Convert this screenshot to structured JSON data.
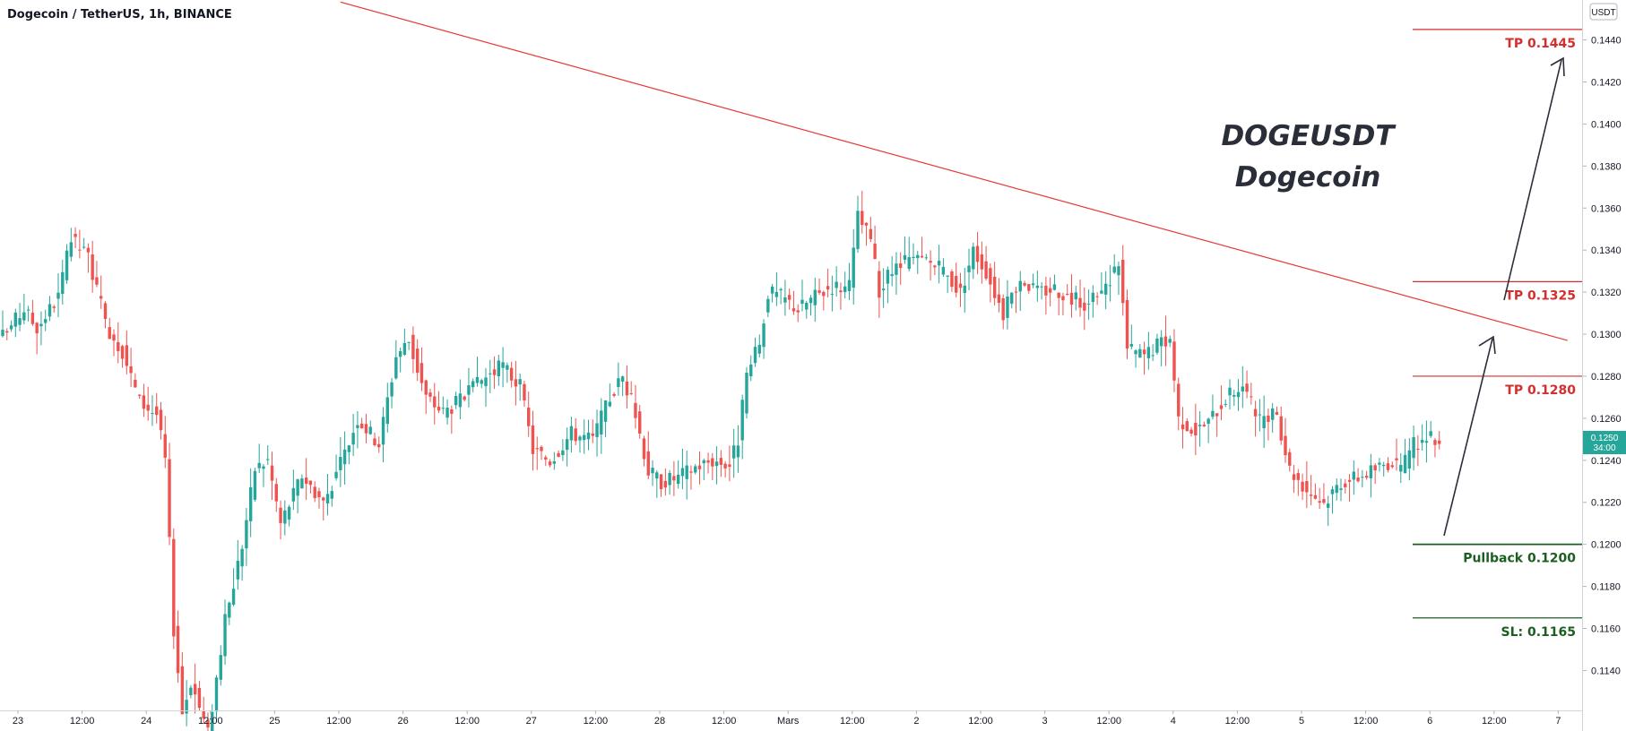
{
  "header": {
    "title": "Dogecoin / TetherUS, 1h, BINANCE"
  },
  "price_axis": {
    "unit": "USDT",
    "current_price": "0.1250",
    "countdown": "34:00"
  },
  "overlay": {
    "title_line1": "DOGEUSDT",
    "title_line2": "Dogecoin"
  },
  "levels": [
    {
      "label": "TP 0.1445",
      "price": 0.1445,
      "color": "#d32f2f"
    },
    {
      "label": "TP 0.1325",
      "price": 0.1325,
      "color": "#d32f2f"
    },
    {
      "label": "TP 0.1280",
      "price": 0.128,
      "color": "#d32f2f"
    },
    {
      "label": "Pullback 0.1200",
      "price": 0.12,
      "color": "#1b5e20"
    },
    {
      "label": "SL: 0.1165",
      "price": 0.1165,
      "color": "#1b5e20"
    }
  ],
  "colors": {
    "up": "#26a69a",
    "down": "#ef5350",
    "trendline": "#e53935",
    "arrow": "#2a2e39",
    "price_tag": "#26a69a"
  },
  "chart_data": {
    "type": "candlestick",
    "title": "Dogecoin / TetherUS, 1h, BINANCE",
    "ylim": [
      0.1121,
      0.1459
    ],
    "y_ticks": [
      "0.1440",
      "0.1420",
      "0.1400",
      "0.1380",
      "0.1360",
      "0.1340",
      "0.1320",
      "0.1300",
      "0.1280",
      "0.1260",
      "0.1240",
      "0.1220",
      "0.1200",
      "0.1180",
      "0.1160",
      "0.1140"
    ],
    "x_ticks": [
      "23",
      "12:00",
      "24",
      "12:00",
      "25",
      "12:00",
      "26",
      "12:00",
      "27",
      "12:00",
      "28",
      "12:00",
      "Mars",
      "12:00",
      "2",
      "12:00",
      "3",
      "12:00",
      "4",
      "12:00",
      "5",
      "12:00",
      "6",
      "12:00",
      "7"
    ],
    "trendline": {
      "from": {
        "bar": 79,
        "price": 0.1458
      },
      "to": {
        "bar": 366,
        "price": 0.1297
      }
    },
    "anchors": [
      [
        0,
        0.1299
      ],
      [
        5,
        0.1312
      ],
      [
        8,
        0.1303
      ],
      [
        13,
        0.1318
      ],
      [
        16,
        0.1345
      ],
      [
        20,
        0.1337
      ],
      [
        24,
        0.1305
      ],
      [
        28,
        0.1292
      ],
      [
        32,
        0.1268
      ],
      [
        36,
        0.1262
      ],
      [
        38,
        0.124
      ],
      [
        40,
        0.116
      ],
      [
        42,
        0.112
      ],
      [
        44,
        0.1135
      ],
      [
        48,
        0.111
      ],
      [
        52,
        0.1163
      ],
      [
        56,
        0.12
      ],
      [
        59,
        0.1236
      ],
      [
        62,
        0.124
      ],
      [
        65,
        0.121
      ],
      [
        70,
        0.1233
      ],
      [
        75,
        0.122
      ],
      [
        79,
        0.1238
      ],
      [
        83,
        0.126
      ],
      [
        88,
        0.1248
      ],
      [
        92,
        0.129
      ],
      [
        95,
        0.1297
      ],
      [
        99,
        0.127
      ],
      [
        103,
        0.1263
      ],
      [
        108,
        0.127
      ],
      [
        113,
        0.128
      ],
      [
        117,
        0.1285
      ],
      [
        121,
        0.1275
      ],
      [
        124,
        0.1245
      ],
      [
        128,
        0.124
      ],
      [
        133,
        0.1253
      ],
      [
        138,
        0.125
      ],
      [
        142,
        0.127
      ],
      [
        145,
        0.128
      ],
      [
        148,
        0.1262
      ],
      [
        151,
        0.1235
      ],
      [
        154,
        0.123
      ],
      [
        158,
        0.1232
      ],
      [
        162,
        0.1237
      ],
      [
        166,
        0.124
      ],
      [
        170,
        0.1238
      ],
      [
        172,
        0.125
      ],
      [
        174,
        0.128
      ],
      [
        177,
        0.1295
      ],
      [
        179,
        0.132
      ],
      [
        182,
        0.1318
      ],
      [
        186,
        0.1312
      ],
      [
        190,
        0.1318
      ],
      [
        194,
        0.1323
      ],
      [
        198,
        0.1322
      ],
      [
        200,
        0.1356
      ],
      [
        203,
        0.1345
      ],
      [
        205,
        0.132
      ],
      [
        208,
        0.133
      ],
      [
        212,
        0.1335
      ],
      [
        216,
        0.1335
      ],
      [
        220,
        0.133
      ],
      [
        224,
        0.132
      ],
      [
        227,
        0.134
      ],
      [
        230,
        0.133
      ],
      [
        234,
        0.131
      ],
      [
        238,
        0.1327
      ],
      [
        242,
        0.132
      ],
      [
        246,
        0.1322
      ],
      [
        250,
        0.1317
      ],
      [
        254,
        0.1314
      ],
      [
        258,
        0.1322
      ],
      [
        261,
        0.1335
      ],
      [
        263,
        0.1293
      ],
      [
        267,
        0.129
      ],
      [
        270,
        0.1295
      ],
      [
        273,
        0.1298
      ],
      [
        275,
        0.126
      ],
      [
        279,
        0.1254
      ],
      [
        282,
        0.1258
      ],
      [
        286,
        0.127
      ],
      [
        290,
        0.1276
      ],
      [
        294,
        0.1258
      ],
      [
        298,
        0.1262
      ],
      [
        301,
        0.1236
      ],
      [
        305,
        0.1226
      ],
      [
        309,
        0.122
      ],
      [
        313,
        0.123
      ],
      [
        317,
        0.1232
      ],
      [
        321,
        0.1236
      ],
      [
        325,
        0.124
      ],
      [
        327,
        0.1234
      ],
      [
        330,
        0.1248
      ],
      [
        333,
        0.125
      ],
      [
        336,
        0.125
      ]
    ]
  }
}
